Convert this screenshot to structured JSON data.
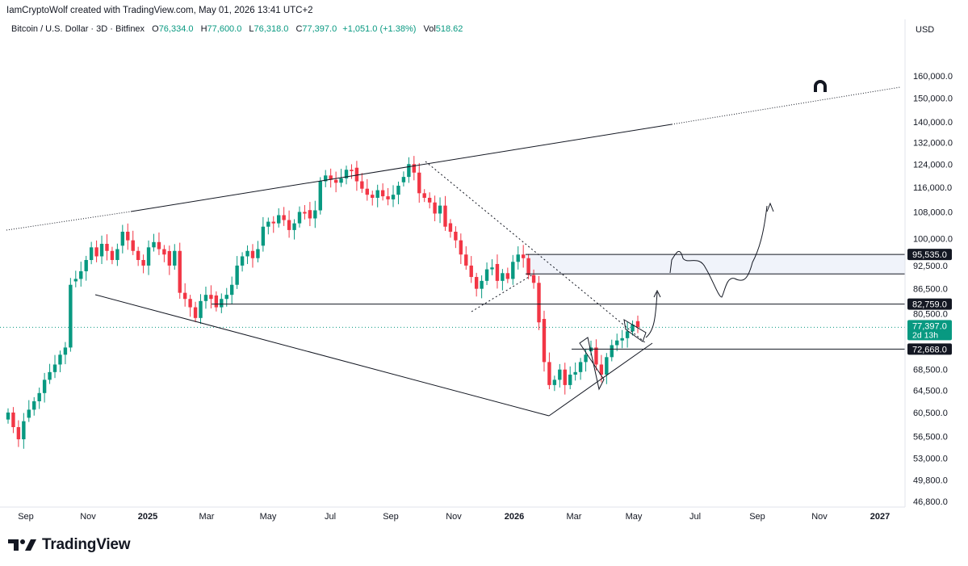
{
  "header": {
    "creator_line": "IamCryptoWolf created with TradingView.com, May 01, 2026 13:41 UTC+2",
    "symbol_line": "Bitcoin / U.S. Dollar · 3D · Bitfinex",
    "open_label": "O",
    "open_value": "76,334.0",
    "high_label": "H",
    "high_value": "77,600.0",
    "low_label": "L",
    "low_value": "76,318.0",
    "close_label": "C",
    "close_value": "77,397.0",
    "change_value": "+1,051.0 (+1.38%)",
    "vol_label": "Vol",
    "vol_value": "518.62",
    "currency": "USD"
  },
  "branding": {
    "logo_text": "TradingView",
    "logo_icon": "tradingview-logo-icon",
    "magnet_icon": "magnet-icon"
  },
  "colors": {
    "up": "#089981",
    "down": "#f23645",
    "line": "#131722",
    "zone": "#f0f3fa"
  },
  "chart_data": {
    "type": "candlestick",
    "title": "",
    "y_scale": "log",
    "ylim": [
      45500,
      175000
    ],
    "y_ticks": [
      "160,000.0",
      "150,000.0",
      "140,000.0",
      "132,000.0",
      "124,000.0",
      "116,000.0",
      "108,000.0",
      "100,000.0",
      "92,500.0",
      "86,500.0",
      "80,500.0",
      "68,500.0",
      "64,500.0",
      "60,500.0",
      "56,500.0",
      "53,000.0",
      "49,800.0",
      "46,800.0"
    ],
    "x_ticks": [
      "Sep",
      "Nov",
      "2025",
      "Mar",
      "May",
      "Jul",
      "Sep",
      "Nov",
      "2026",
      "Mar",
      "May",
      "Jul",
      "Sep",
      "Nov",
      "2027"
    ],
    "x_ticks_bold": [
      "2025",
      "2026",
      "2027"
    ],
    "price_labels": [
      {
        "value": "95,535.0",
        "level": 95535,
        "style": "dark"
      },
      {
        "value": "82,759.0",
        "level": 82759,
        "style": "dark"
      },
      {
        "value": "77,397.0",
        "sub": "2d 13h",
        "level": 77397,
        "style": "current"
      },
      {
        "value": "72,668.0",
        "level": 72668,
        "style": "dark"
      }
    ],
    "horizontal_levels": [
      95535,
      90300,
      82759,
      72668
    ],
    "resistance_zone": [
      90300,
      95535
    ],
    "last_price": 77397,
    "candle_closes_approx": [
      60500,
      58000,
      56000,
      59000,
      61000,
      62500,
      64000,
      66500,
      68000,
      69500,
      71500,
      73000,
      87500,
      89000,
      91000,
      94000,
      97500,
      95000,
      98500,
      96500,
      94000,
      97000,
      102000,
      99500,
      96500,
      94000,
      92500,
      97500,
      99000,
      97000,
      95500,
      92500,
      96500,
      85500,
      84000,
      82000,
      79500,
      83500,
      85000,
      84000,
      82000,
      84000,
      85000,
      87500,
      92500,
      95000,
      96500,
      94500,
      97000,
      103500,
      105000,
      104500,
      107000,
      105500,
      102500,
      104500,
      108000,
      107500,
      106000,
      108500,
      118000,
      120000,
      118500,
      117500,
      119000,
      122000,
      121500,
      118000,
      115500,
      113500,
      112500,
      115000,
      113000,
      112000,
      113500,
      116500,
      119500,
      124000,
      121000,
      114000,
      112500,
      111000,
      107500,
      110000,
      103500,
      102000,
      99500,
      95500,
      92500,
      89500,
      86500,
      88500,
      91500,
      92000,
      88500,
      90500,
      89000,
      93500,
      95500,
      94500,
      90000,
      88000,
      78500,
      70000,
      65500,
      66500,
      68500,
      65500,
      67500,
      68000,
      70000,
      71500,
      73000,
      69500,
      67500,
      71000,
      73500,
      74500,
      75000,
      76500,
      78000,
      77397
    ]
  }
}
